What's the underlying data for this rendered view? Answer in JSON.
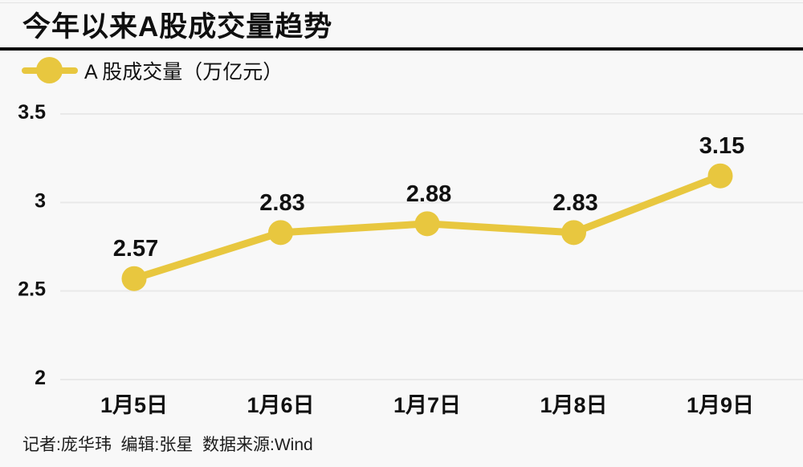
{
  "header": {
    "title": "今年以来A股成交量趋势"
  },
  "legend": {
    "label": "A 股成交量（万亿元）"
  },
  "chart_data": {
    "type": "line",
    "title": "今年以来A股成交量趋势",
    "categories": [
      "1月5日",
      "1月6日",
      "1月7日",
      "1月8日",
      "1月9日"
    ],
    "series": [
      {
        "name": "A 股成交量（万亿元）",
        "values": [
          2.57,
          2.83,
          2.88,
          2.83,
          3.15
        ]
      }
    ],
    "data_labels": [
      "2.57",
      "2.83",
      "2.88",
      "2.83",
      "3.15"
    ],
    "xlabel": "",
    "ylabel": "A 股成交量（万亿元）",
    "ylim": [
      2,
      3.5
    ],
    "ytick_labels": [
      "3.5",
      "3",
      "2.5",
      "2"
    ],
    "ytick_values": [
      3.5,
      3,
      2.5,
      2
    ],
    "grid": true,
    "legend_position": "top-left"
  },
  "colors": {
    "line": "#e8c73f",
    "marker": "#e8c73f",
    "grid": "#e9e9e9",
    "background": "#f8f8f8",
    "text": "#111111",
    "footer_text": "#1c1c1c"
  },
  "footer": {
    "text": "记者:庞华玮  编辑:张星  数据来源:Wind"
  }
}
